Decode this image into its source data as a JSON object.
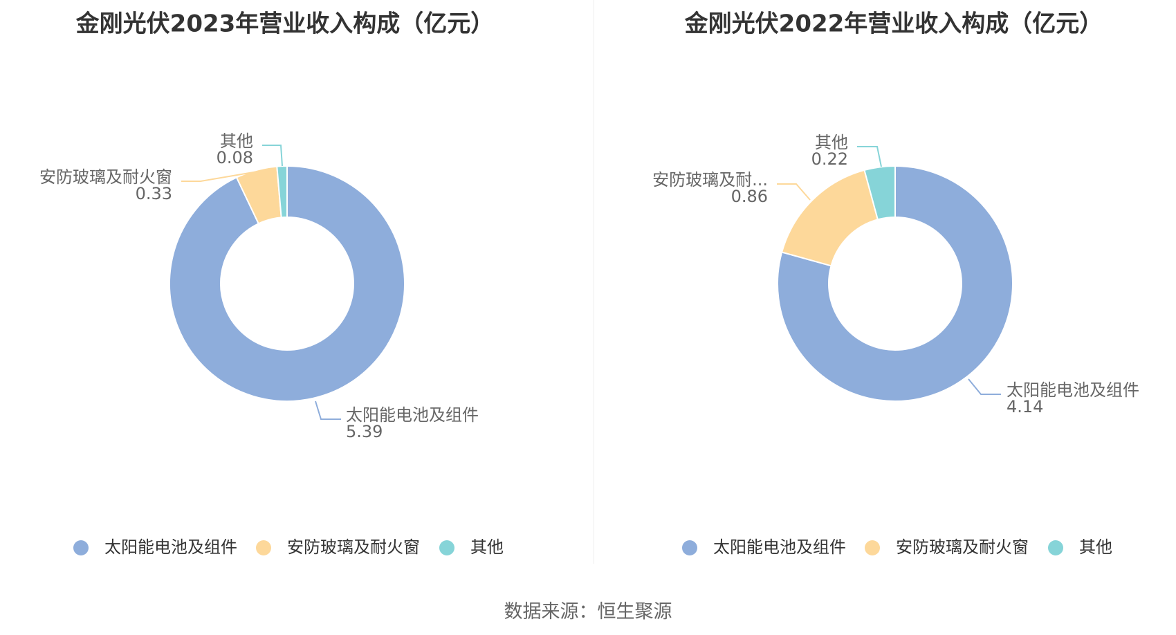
{
  "source_text": "数据来源：恒生聚源",
  "colors": [
    "#8eaddb",
    "#fdd89a",
    "#86d4d8"
  ],
  "chart_data": [
    {
      "type": "pie",
      "title": "金刚光伏2023年营业收入构成（亿元）",
      "categories": [
        "太阳能电池及组件",
        "安防玻璃及耐火窗",
        "其他"
      ],
      "values": [
        5.39,
        0.33,
        0.08
      ],
      "slice_labels": [
        "太阳能电池及组件",
        "安防玻璃及耐火窗",
        "其他"
      ],
      "value_labels": [
        "5.39",
        "0.33",
        "0.08"
      ],
      "legend": [
        "太阳能电池及组件",
        "安防玻璃及耐火窗",
        "其他"
      ],
      "legend_position": "bottom"
    },
    {
      "type": "pie",
      "title": "金刚光伏2022年营业收入构成（亿元）",
      "categories": [
        "太阳能电池及组件",
        "安防玻璃及耐火窗",
        "其他"
      ],
      "values": [
        4.14,
        0.86,
        0.22
      ],
      "slice_labels": [
        "太阳能电池及组件",
        "安防玻璃及耐...",
        "其他"
      ],
      "value_labels": [
        "4.14",
        "0.86",
        "0.22"
      ],
      "legend": [
        "太阳能电池及组件",
        "安防玻璃及耐火窗",
        "其他"
      ],
      "legend_position": "bottom"
    }
  ]
}
